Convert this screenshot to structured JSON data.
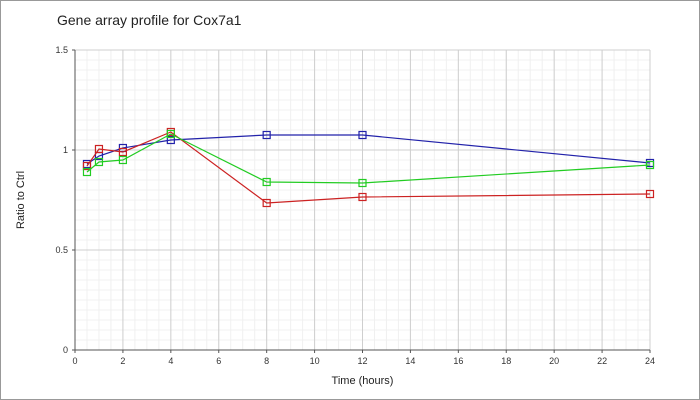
{
  "chart_data": {
    "type": "line",
    "title": "Gene array profile for Cox7a1",
    "xlabel": "Time (hours)",
    "ylabel": "Ratio to Ctrl",
    "xlim": [
      0,
      24
    ],
    "ylim": [
      0,
      1.5
    ],
    "x_ticks": [
      0,
      2,
      4,
      6,
      8,
      10,
      12,
      14,
      16,
      18,
      20,
      22,
      24
    ],
    "y_ticks": [
      0,
      0.5,
      1,
      1.5
    ],
    "x_tick_labels": [
      "0",
      "2",
      "4",
      "6",
      "8",
      "10",
      "12",
      "14",
      "16",
      "18",
      "20",
      "22",
      "24"
    ],
    "y_tick_labels": [
      "0",
      "0.5",
      "1",
      "1.5"
    ],
    "grid": true,
    "marker": "square",
    "series": [
      {
        "color": "#2222aa",
        "x": [
          0.5,
          1,
          2,
          4,
          8,
          12,
          24
        ],
        "y": [
          0.93,
          0.97,
          1.01,
          1.05,
          1.075,
          1.075,
          0.935
        ]
      },
      {
        "color": "#cc2222",
        "x": [
          0.5,
          1,
          2,
          4,
          8,
          12,
          24
        ],
        "y": [
          0.92,
          1.005,
          0.99,
          1.09,
          0.735,
          0.765,
          0.78
        ]
      },
      {
        "color": "#22cc22",
        "x": [
          0.5,
          1,
          2,
          4,
          8,
          12,
          24
        ],
        "y": [
          0.89,
          0.94,
          0.95,
          1.08,
          0.84,
          0.835,
          0.925
        ]
      }
    ]
  }
}
